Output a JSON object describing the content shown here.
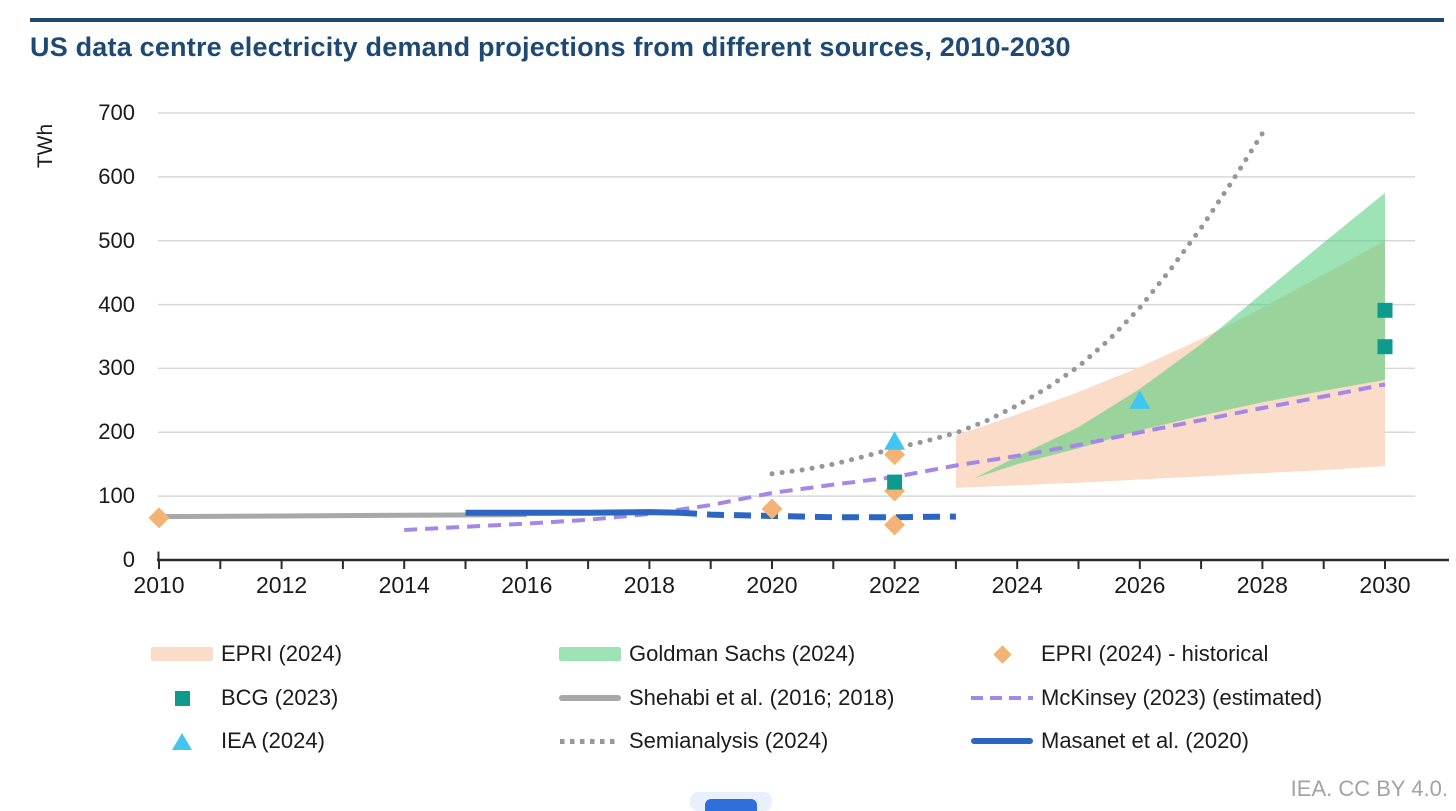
{
  "page": {
    "title": "US data centre electricity demand projections from different sources, 2010-2030",
    "attribution": "IEA. CC BY 4.0.",
    "accent_color": "#1d4973",
    "text_color": "#1a1a1a",
    "grid_color": "#d8d8d8",
    "axis_color": "#2b2b2b"
  },
  "chart_data": {
    "type": "combo",
    "title": "US data centre electricity demand projections from different sources, 2010-2030",
    "xlabel": "",
    "ylabel": "TWh",
    "xlim": [
      2010,
      2030
    ],
    "ylim": [
      0,
      700
    ],
    "ytick_step": 100,
    "xtick_label_step": 2,
    "xtick_minor_step": 1,
    "grid": "horizontal",
    "legend_position": "bottom",
    "series": [
      {
        "name": "EPRI (2024)",
        "type": "band",
        "color": "#fadcc8",
        "x": [
          2023,
          2024,
          2025,
          2026,
          2027,
          2028,
          2029,
          2030
        ],
        "upper": [
          195,
          228,
          263,
          302,
          346,
          395,
          447,
          500
        ],
        "lower": [
          113,
          117,
          121,
          126,
          131,
          136,
          141,
          147
        ]
      },
      {
        "name": "Goldman Sachs (2024)",
        "type": "band",
        "color": "rgba(76,204,122,0.55)",
        "x": [
          2023.3,
          2024,
          2025,
          2026,
          2027,
          2028,
          2029,
          2030
        ],
        "upper": [
          128,
          162,
          208,
          268,
          338,
          418,
          497,
          575
        ],
        "lower": [
          128,
          150,
          175,
          203,
          226,
          247,
          265,
          282
        ]
      },
      {
        "name": "Shehabi et al. (2016; 2018)",
        "type": "line",
        "color": "#a8a8a8",
        "width": 5,
        "x": [
          2010,
          2012,
          2014,
          2016
        ],
        "y": [
          68,
          69,
          70,
          71
        ]
      },
      {
        "name": "McKinsey (2023) (estimated)",
        "type": "line",
        "color": "#a487e6",
        "width": 4,
        "dash": "13 8",
        "x": [
          2014,
          2015,
          2016,
          2017,
          2018,
          2019,
          2020,
          2021,
          2022,
          2023,
          2024,
          2025,
          2026,
          2027,
          2028,
          2029,
          2030
        ],
        "y": [
          47,
          52,
          57,
          63,
          72,
          86,
          105,
          118,
          130,
          148,
          163,
          180,
          200,
          219,
          238,
          256,
          275
        ]
      },
      {
        "name": "Semianalysis (2024)",
        "type": "line",
        "color": "#979797",
        "width": 5,
        "dash": "0.1 10",
        "cap": "round",
        "x": [
          2020,
          2020.5,
          2021,
          2021.5,
          2022,
          2022.5,
          2023,
          2023.5,
          2024,
          2024.5,
          2025,
          2025.5,
          2026,
          2026.5,
          2027,
          2027.5,
          2028
        ],
        "y": [
          135,
          141,
          150,
          162,
          175,
          186,
          199,
          218,
          242,
          270,
          303,
          345,
          395,
          455,
          520,
          592,
          668
        ]
      },
      {
        "name": "Masanet et al. (2020)",
        "type": "line",
        "color": "#2a66c2",
        "width": 6,
        "x": [
          2015,
          2016,
          2017,
          2018,
          2018.5
        ],
        "y": [
          74,
          74,
          74,
          75,
          74
        ]
      },
      {
        "name": "Masanet et al. (2020) projection",
        "type": "line",
        "color": "#2a66c2",
        "width": 6,
        "dash": "17 10",
        "legend": false,
        "x": [
          2018.5,
          2019,
          2020,
          2021,
          2022,
          2023
        ],
        "y": [
          74,
          71,
          69,
          67,
          67,
          68
        ]
      },
      {
        "name": "EPRI (2024) - historical",
        "type": "scatter",
        "marker": "diamond",
        "color": "#f2b374",
        "points": [
          [
            2010,
            66
          ],
          [
            2020,
            80
          ],
          [
            2022,
            165
          ],
          [
            2022,
            108
          ],
          [
            2022,
            55
          ]
        ]
      },
      {
        "name": "BCG (2023)",
        "type": "scatter",
        "marker": "square",
        "color": "#0e9a8c",
        "points": [
          [
            2022,
            122
          ],
          [
            2030,
            391
          ],
          [
            2030,
            334
          ]
        ]
      },
      {
        "name": "IEA (2024)",
        "type": "scatter",
        "marker": "triangle",
        "color": "#41c6f2",
        "points": [
          [
            2022,
            186
          ],
          [
            2026,
            250
          ]
        ]
      }
    ]
  },
  "legend": {
    "items": [
      {
        "label": "EPRI (2024)",
        "swatch": "area",
        "color": "#fadcc8"
      },
      {
        "label": "Goldman Sachs (2024)",
        "swatch": "area",
        "color": "rgba(76,204,122,0.55)"
      },
      {
        "label": "EPRI (2024) - historical",
        "swatch": "diamond",
        "color": "#f2b374"
      },
      {
        "label": "BCG (2023)",
        "swatch": "square",
        "color": "#0e9a8c"
      },
      {
        "label": "Shehabi et al. (2016; 2018)",
        "swatch": "line",
        "color": "#a8a8a8"
      },
      {
        "label": "McKinsey (2023) (estimated)",
        "swatch": "dashed",
        "color": "#a487e6"
      },
      {
        "label": "IEA (2024)",
        "swatch": "triangle",
        "color": "#41c6f2"
      },
      {
        "label": "Semianalysis (2024)",
        "swatch": "dotted",
        "color": "#979797"
      },
      {
        "label": "Masanet et al. (2020)",
        "swatch": "line",
        "color": "#2a66c2"
      }
    ]
  }
}
